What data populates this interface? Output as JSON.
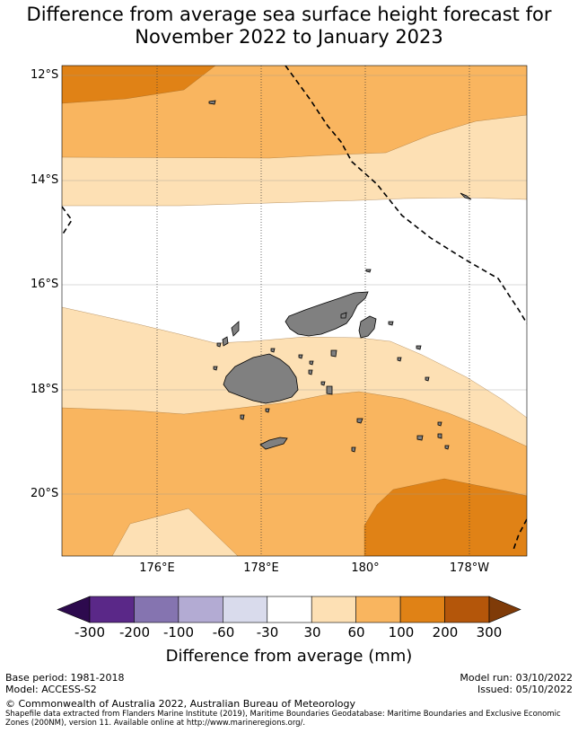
{
  "title_line1": "Difference from average sea surface height forecast for",
  "title_line2": "November 2022 to January 2023",
  "lat_labels": [
    "12°S",
    "14°S",
    "16°S",
    "18°S",
    "20°S"
  ],
  "lon_labels": [
    "176°E",
    "178°E",
    "180°",
    "178°W"
  ],
  "colorbar": {
    "ticks": [
      "-300",
      "-200",
      "-100",
      "-60",
      "-30",
      "30",
      "60",
      "100",
      "200",
      "300"
    ],
    "colors": [
      "#2d0a4e",
      "#5a2888",
      "#8574b0",
      "#b3abd3",
      "#d9dbec",
      "#ffffff",
      "#fde0b4",
      "#f9b55f",
      "#e08216",
      "#b4560a",
      "#7f3b08"
    ],
    "title": "Difference from average (mm)"
  },
  "footer": {
    "base_period": "Base period: 1981-2018",
    "model": "Model: ACCESS-S2",
    "model_run": "Model run: 03/10/2022",
    "issued": "Issued: 05/10/2022",
    "copyright": "© Commonwealth of Australia 2022, Australian Bureau of Meteorology",
    "source": "Shapefile data extracted from Flanders Marine Institute (2019), Maritime Boundaries Geodatabase: Maritime Boundaries and Exclusive Economic Zones (200NM), version 11. Available online at http://www.marineregions.org/."
  }
}
